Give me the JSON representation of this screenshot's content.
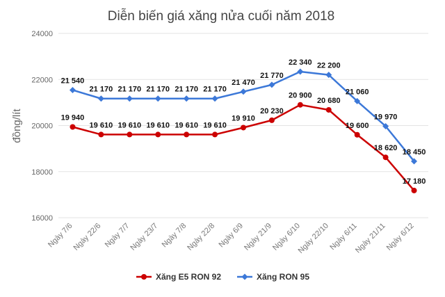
{
  "chart_data": {
    "type": "line",
    "title": "Diễn biến giá xăng nửa cuối năm 2018",
    "ylabel": "đồng/lít",
    "xlabel": "",
    "ylim": [
      16000,
      24000
    ],
    "yticks": [
      16000,
      18000,
      20000,
      22000,
      24000
    ],
    "ytick_labels": [
      "16000",
      "18000",
      "20000",
      "22000",
      "24000"
    ],
    "grid": true,
    "legend_position": "bottom",
    "categories": [
      "Ngày 7/6",
      "Ngày 22/6",
      "Ngày 7/7",
      "Ngày 23/7",
      "Ngày 7/8",
      "Ngày 22/8",
      "Ngày 6/9",
      "Ngày 21/9",
      "Ngày 6/10",
      "Ngày 22/10",
      "Ngày 6/11",
      "Ngày 21/11",
      "Ngày 6/12"
    ],
    "series": [
      {
        "name": "Xăng E5 RON 92",
        "color": "#cc0000",
        "marker": "circle",
        "values": [
          19940,
          19610,
          19610,
          19610,
          19610,
          19610,
          19910,
          20230,
          20900,
          20680,
          19600,
          18620,
          17180
        ],
        "labels": [
          "19 940",
          "19 610",
          "19 610",
          "19 610",
          "19 610",
          "19 610",
          "19 910",
          "20 230",
          "20 900",
          "20 680",
          "19 600",
          "18 620",
          "17 180"
        ]
      },
      {
        "name": "Xăng RON 95",
        "color": "#3c78d8",
        "marker": "diamond",
        "values": [
          21540,
          21170,
          21170,
          21170,
          21170,
          21170,
          21470,
          21770,
          22340,
          22200,
          21060,
          19970,
          18450
        ],
        "labels": [
          "21 540",
          "21 170",
          "21 170",
          "21 170",
          "21 170",
          "21 170",
          "21 470",
          "21 770",
          "22 340",
          "22 200",
          "21 060",
          "19 970",
          "18 450"
        ]
      }
    ]
  }
}
